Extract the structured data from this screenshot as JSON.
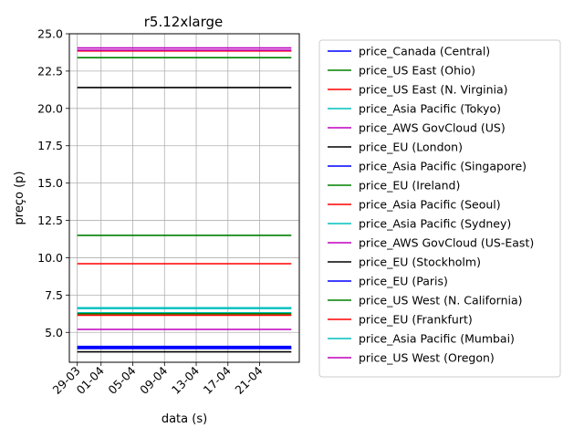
{
  "chart_data": {
    "type": "line",
    "title": "r5.12xlarge",
    "xlabel": "data (s)",
    "ylabel": "preço (p)",
    "x_range": [
      "2023-03-29",
      "2023-04-25"
    ],
    "xlim": [
      "2023-03-28",
      "2023-04-26"
    ],
    "ylim": [
      3.0,
      25.0
    ],
    "y_ticks": [
      5.0,
      7.5,
      10.0,
      12.5,
      15.0,
      17.5,
      20.0,
      22.5,
      25.0
    ],
    "y_tick_labels": [
      "5.0",
      "7.5",
      "10.0",
      "12.5",
      "15.0",
      "17.5",
      "20.0",
      "22.5",
      "25.0"
    ],
    "x_ticks": [
      "2023-03-29",
      "2023-04-01",
      "2023-04-05",
      "2023-04-09",
      "2023-04-13",
      "2023-04-17",
      "2023-04-21"
    ],
    "x_tick_labels": [
      "29-03",
      "01-04",
      "05-04",
      "09-04",
      "13-04",
      "17-04",
      "21-04"
    ],
    "grid": true,
    "legend_position": "outside-right",
    "series": [
      {
        "name": "price_Canada (Central)",
        "color": "#0000ff",
        "values": [
          4.06,
          4.06
        ]
      },
      {
        "name": "price_US East (Ohio)",
        "color": "#008000",
        "values": [
          23.4,
          23.4
        ]
      },
      {
        "name": "price_US East (N. Virginia)",
        "color": "#ff0000",
        "values": [
          23.85,
          23.85
        ]
      },
      {
        "name": "price_Asia Pacific (Tokyo)",
        "color": "#00bfbf",
        "values": [
          6.31,
          6.31
        ]
      },
      {
        "name": "price_AWS GovCloud (US)",
        "color": "#bf00bf",
        "values": [
          24.05,
          24.05
        ]
      },
      {
        "name": "price_EU (London)",
        "color": "#000000",
        "values": [
          21.4,
          21.4
        ]
      },
      {
        "name": "price_Asia Pacific (Singapore)",
        "color": "#0000ff",
        "values": [
          3.97,
          3.97
        ]
      },
      {
        "name": "price_EU (Ireland)",
        "color": "#008000",
        "values": [
          11.5,
          11.5
        ]
      },
      {
        "name": "price_Asia Pacific (Seoul)",
        "color": "#ff0000",
        "values": [
          9.6,
          9.6
        ]
      },
      {
        "name": "price_Asia Pacific (Sydney)",
        "color": "#00bfbf",
        "values": [
          6.65,
          6.65
        ]
      },
      {
        "name": "price_AWS GovCloud (US-East)",
        "color": "#bf00bf",
        "values": [
          5.2,
          5.2
        ]
      },
      {
        "name": "price_EU (Stockholm)",
        "color": "#000000",
        "values": [
          3.7,
          3.7
        ]
      },
      {
        "name": "price_EU (Paris)",
        "color": "#0000ff",
        "values": [
          3.92,
          3.92
        ]
      },
      {
        "name": "price_US West (N. California)",
        "color": "#008000",
        "values": [
          6.25,
          6.25
        ]
      },
      {
        "name": "price_EU (Frankfurt)",
        "color": "#ff0000",
        "values": [
          6.15,
          6.15
        ]
      },
      {
        "name": "price_Asia Pacific (Mumbai)",
        "color": "#00bfbf",
        "values": [
          6.6,
          6.6
        ]
      },
      {
        "name": "price_US West (Oregon)",
        "color": "#bf00bf",
        "values": [
          23.9,
          23.9
        ]
      }
    ]
  }
}
